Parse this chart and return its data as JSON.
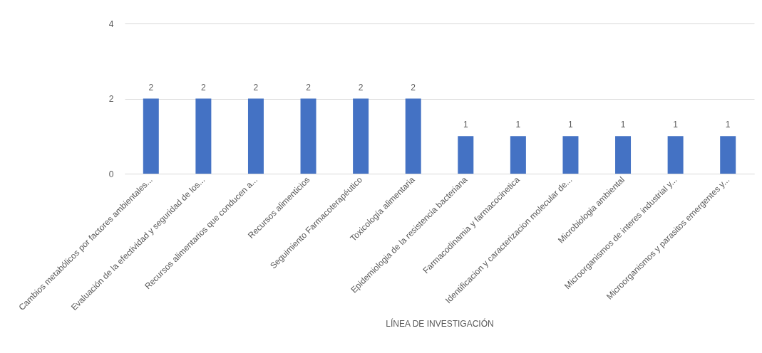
{
  "chart_data": {
    "type": "bar",
    "xlabel": "LÍNEA DE INVESTIGACIÓN",
    "categories": [
      "Cambios metabólicos por factores ambientales...",
      "Evaluación de la efectividad y seguridad de los...",
      "Recursos alimentarios que conducen a...",
      "Recursos alimenticios",
      "Seguimiento Farmacoterapéutico",
      "Toxicología alimentaria",
      "Epidemiologia de la resistencia bacteriana",
      "Farmacodinamia y farmacocinetica",
      "Identificacion y caracterizacion molecular de...",
      "Microbiologia ambiental",
      "Microorganismos de interes industrial y...",
      "Microorganismos y parasitos emergentes y..."
    ],
    "values": [
      2,
      2,
      2,
      2,
      2,
      2,
      1,
      1,
      1,
      1,
      1,
      1
    ],
    "color": "#4472c4",
    "ylim": [
      0,
      4
    ],
    "yticks": [
      0,
      2,
      4
    ],
    "grid": "y",
    "data_labels": true
  }
}
